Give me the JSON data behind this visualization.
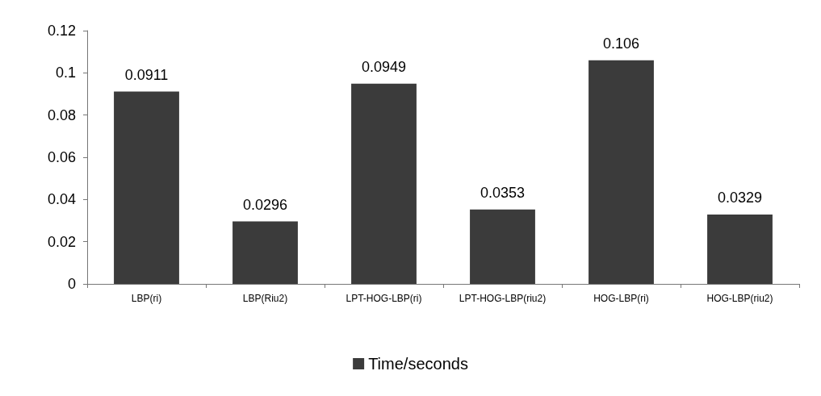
{
  "chart_data": {
    "type": "bar",
    "categories": [
      "LBP(ri)",
      "LBP(Riu2)",
      "LPT-HOG-LBP(ri)",
      "LPT-HOG-LBP(riu2)",
      "HOG-LBP(ri)",
      "HOG-LBP(riu2)"
    ],
    "series": [
      {
        "name": "Time/seconds",
        "color": "#3b3b3b",
        "values": [
          0.0911,
          0.0296,
          0.0949,
          0.0353,
          0.106,
          0.0329
        ]
      }
    ],
    "ylim": [
      0,
      0.12
    ],
    "yticks": [
      0,
      0.02,
      0.04,
      0.06,
      0.08,
      0.1,
      0.12
    ],
    "data_labels": true,
    "legend": "bottom",
    "grid": false
  }
}
